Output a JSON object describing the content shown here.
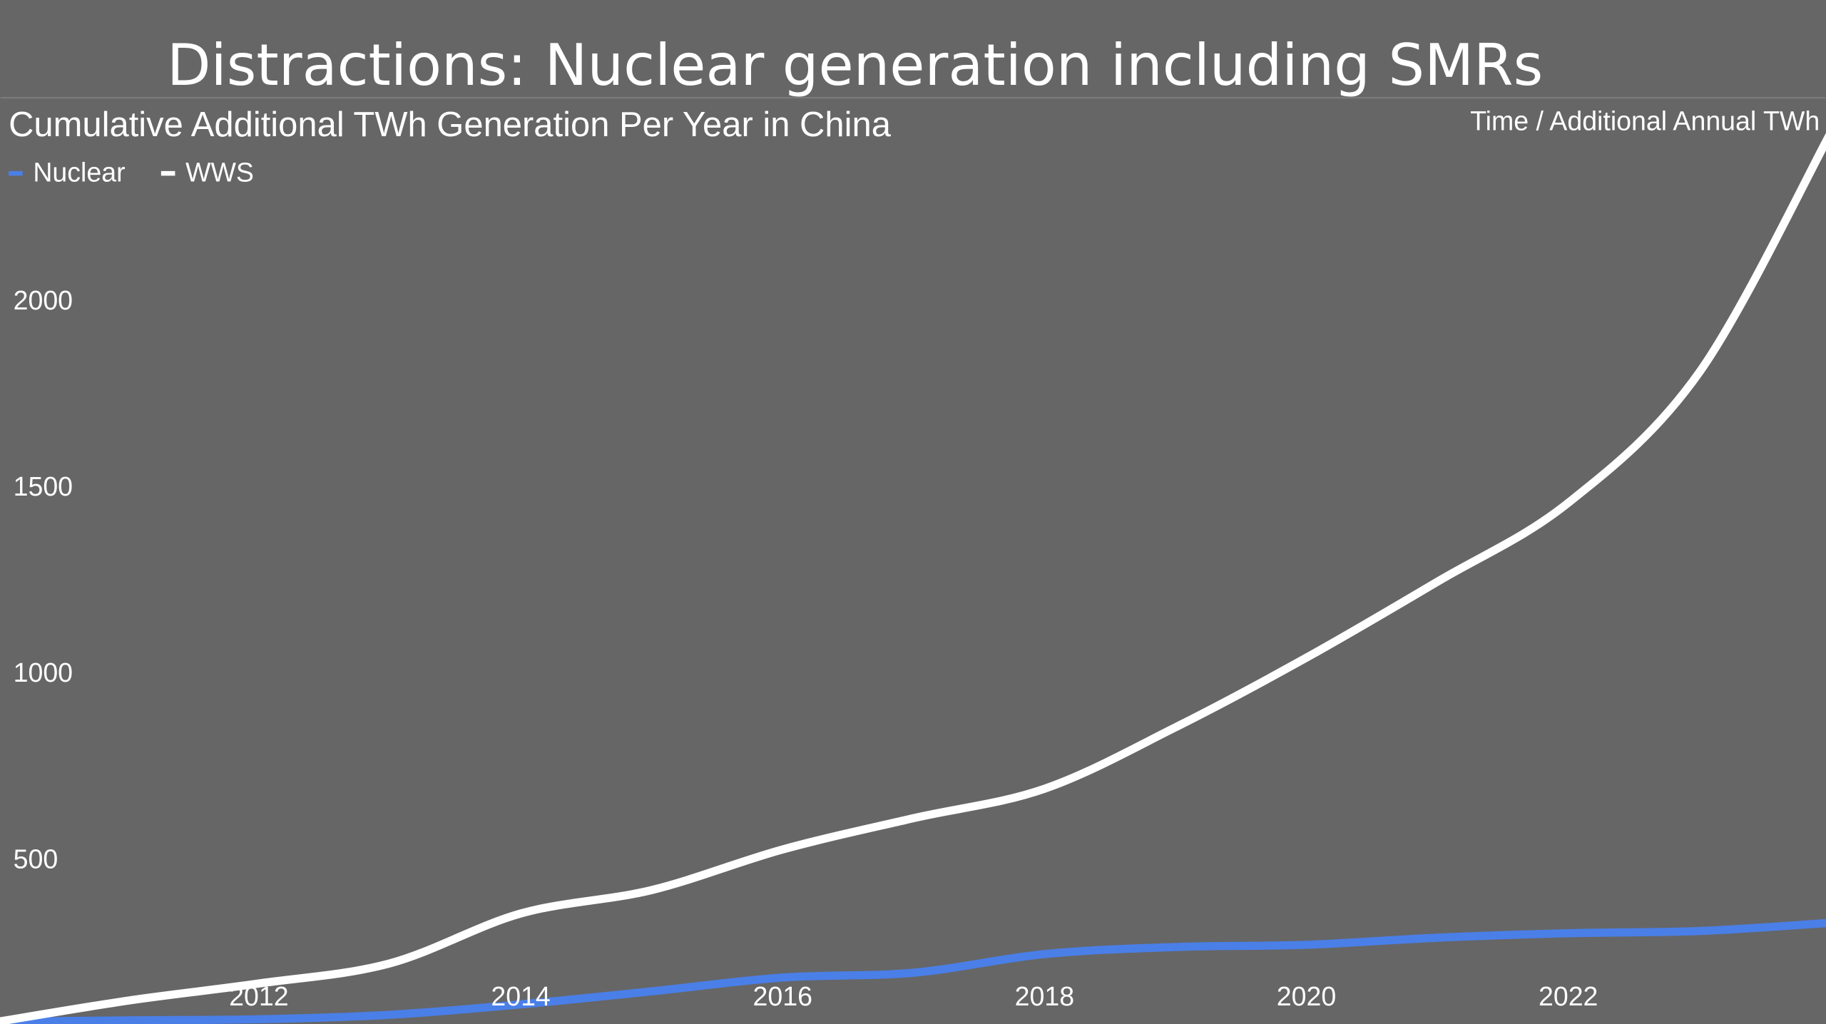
{
  "slide": {
    "title": "Distractions: Nuclear generation including SMRs"
  },
  "colors": {
    "background": "#666666",
    "nuclear": "#4a7fe8",
    "wws": "#ffffff",
    "text": "#ffffff"
  },
  "chart_data": {
    "type": "line",
    "title": "Cumulative Additional TWh Generation Per Year in China",
    "axis_caption": "Time / Additional Annual TWh",
    "legend": {
      "position": "top-left",
      "entries": [
        "Nuclear",
        "WWS"
      ]
    },
    "xlim": [
      2010,
      2024
    ],
    "ylim": [
      0,
      2500
    ],
    "x_ticks": [
      "2012",
      "2014",
      "2016",
      "2018",
      "2020",
      "2022"
    ],
    "y_ticks": [
      "500",
      "1000",
      "1500",
      "2000"
    ],
    "grid": false,
    "x": [
      2010,
      2011,
      2012,
      2013,
      2014,
      2015,
      2016,
      2017,
      2018,
      2019,
      2020,
      2021,
      2022,
      2023,
      2024
    ],
    "series": [
      {
        "name": "Nuclear",
        "color": "#4a7fe8",
        "values": [
          62,
          66,
          69,
          81,
          109,
          144,
          181,
          194,
          244,
          263,
          269,
          288,
          300,
          306,
          328
        ]
      },
      {
        "name": "WWS",
        "color": "#ffffff",
        "values": [
          62,
          119,
          165,
          219,
          353,
          416,
          525,
          609,
          688,
          853,
          1040,
          1244,
          1456,
          1806,
          2447
        ]
      }
    ]
  }
}
